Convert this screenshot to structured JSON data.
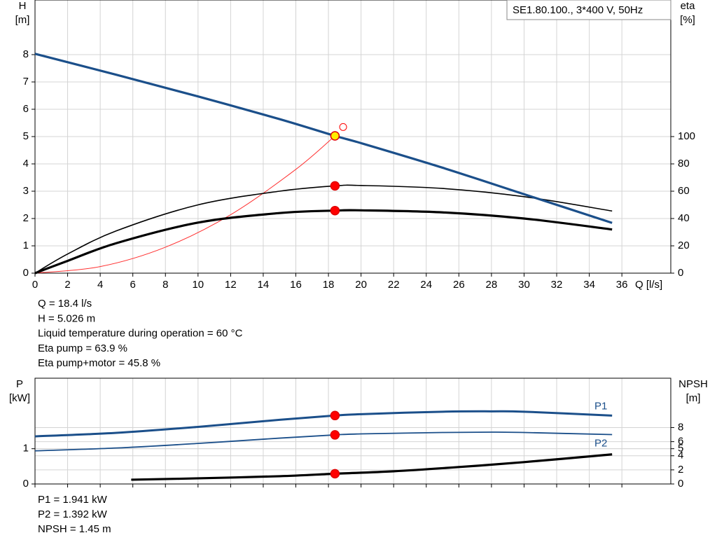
{
  "chart_data": [
    {
      "type": "line",
      "x_label": "Q [l/s]",
      "y_label": [
        "H",
        "[m]"
      ],
      "y2_label": [
        "eta",
        "[%]"
      ],
      "xlim": [
        0,
        39
      ],
      "xticks": [
        0,
        2,
        4,
        6,
        8,
        10,
        12,
        14,
        16,
        18,
        20,
        22,
        24,
        26,
        28,
        30,
        32,
        34,
        36
      ],
      "xtick_labels": true,
      "ylim": [
        0,
        10
      ],
      "yticks": [
        0,
        1,
        2,
        3,
        4,
        5,
        6,
        7,
        8
      ],
      "y2lim": [
        0,
        200
      ],
      "y2ticks": [
        0,
        20,
        40,
        60,
        80,
        100
      ],
      "grid": true,
      "duty_q": 18.4,
      "series": [
        {
          "x": [
            0,
            4,
            8,
            12,
            16,
            18.4
          ],
          "values": [
            0,
            0.24,
            0.95,
            2.14,
            3.8,
            5.026
          ],
          "color": "#ff3030",
          "width": 1
        },
        {
          "x": [
            0,
            2,
            5,
            10,
            15,
            18.4,
            20,
            25,
            30,
            35.4
          ],
          "values": [
            0,
            14,
            31,
            50,
            60,
            63.9,
            64.2,
            62,
            56,
            45.5
          ],
          "color": "#000000",
          "width": 1.6,
          "axis": "y2",
          "point_color": "#ff0000"
        },
        {
          "x": [
            0,
            2,
            5,
            10,
            15,
            18.4,
            20,
            25,
            30,
            35.4
          ],
          "values": [
            0,
            9,
            22,
            37,
            44,
            45.8,
            46,
            44.5,
            40,
            32
          ],
          "color": "#000000",
          "width": 3.2,
          "axis": "y2",
          "point_color": "#ff0000"
        },
        {
          "x": [
            0,
            5,
            10,
            15,
            18.4,
            20,
            25,
            30,
            35.4
          ],
          "values": [
            8.03,
            7.26,
            6.47,
            5.64,
            5.026,
            4.76,
            3.86,
            2.89,
            1.84
          ],
          "color": "#1b4f8a",
          "width": 3.2,
          "point_color": "#ffee00"
        },
        {
          "type": "scatter",
          "x": [
            18.9
          ],
          "values": [
            5.35
          ],
          "color": "#ff0000",
          "hollow": true
        }
      ]
    },
    {
      "type": "line",
      "y_label": [
        "P",
        "[kW]"
      ],
      "y2_label": [
        "NPSH",
        "[m]"
      ],
      "xlim": [
        0,
        39
      ],
      "xticks": [
        0,
        2,
        4,
        6,
        8,
        10,
        12,
        14,
        16,
        18,
        20,
        22,
        24,
        26,
        28,
        30,
        32,
        34,
        36
      ],
      "xtick_labels": false,
      "ylim": [
        0,
        3
      ],
      "yticks": [
        0,
        1
      ],
      "y2lim": [
        0,
        15
      ],
      "y2ticks": [
        0,
        2,
        4,
        5,
        6,
        8
      ],
      "grid": true,
      "duty_q": 18.4,
      "series": [
        {
          "name": "P1",
          "x": [
            0,
            5,
            10,
            15,
            18.4,
            20,
            25,
            28,
            30,
            35.4
          ],
          "values": [
            1.35,
            1.45,
            1.62,
            1.82,
            1.941,
            1.98,
            2.05,
            2.06,
            2.05,
            1.94
          ],
          "color": "#1b4f8a",
          "width": 3,
          "point_color": "#ff0000"
        },
        {
          "name": "P2",
          "x": [
            0,
            5,
            10,
            15,
            18.4,
            20,
            25,
            28,
            30,
            35.4
          ],
          "values": [
            0.94,
            1.02,
            1.15,
            1.3,
            1.392,
            1.42,
            1.46,
            1.47,
            1.46,
            1.4
          ],
          "color": "#1b4f8a",
          "width": 1.8,
          "point_color": "#ff0000"
        },
        {
          "x": [
            5.9,
            10,
            15,
            18.4,
            22,
            26,
            30,
            35.4
          ],
          "values": [
            0.6,
            0.8,
            1.1,
            1.45,
            1.8,
            2.4,
            3.1,
            4.2
          ],
          "color": "#000000",
          "width": 3.2,
          "axis": "y2",
          "point_color": "#ff0000"
        }
      ]
    }
  ],
  "model": "SE1.80.100., 3*400 V, 50Hz",
  "readout": [
    "Q = 18.4 l/s",
    "H = 5.026 m",
    "Liquid temperature during operation = 60 °C",
    "Eta pump = 63.9 %",
    "Eta pump+motor = 45.8 %"
  ],
  "readout_power": [
    "P1 = 1.941 kW",
    "P2 = 1.392 kW",
    "NPSH = 1.45 m"
  ]
}
